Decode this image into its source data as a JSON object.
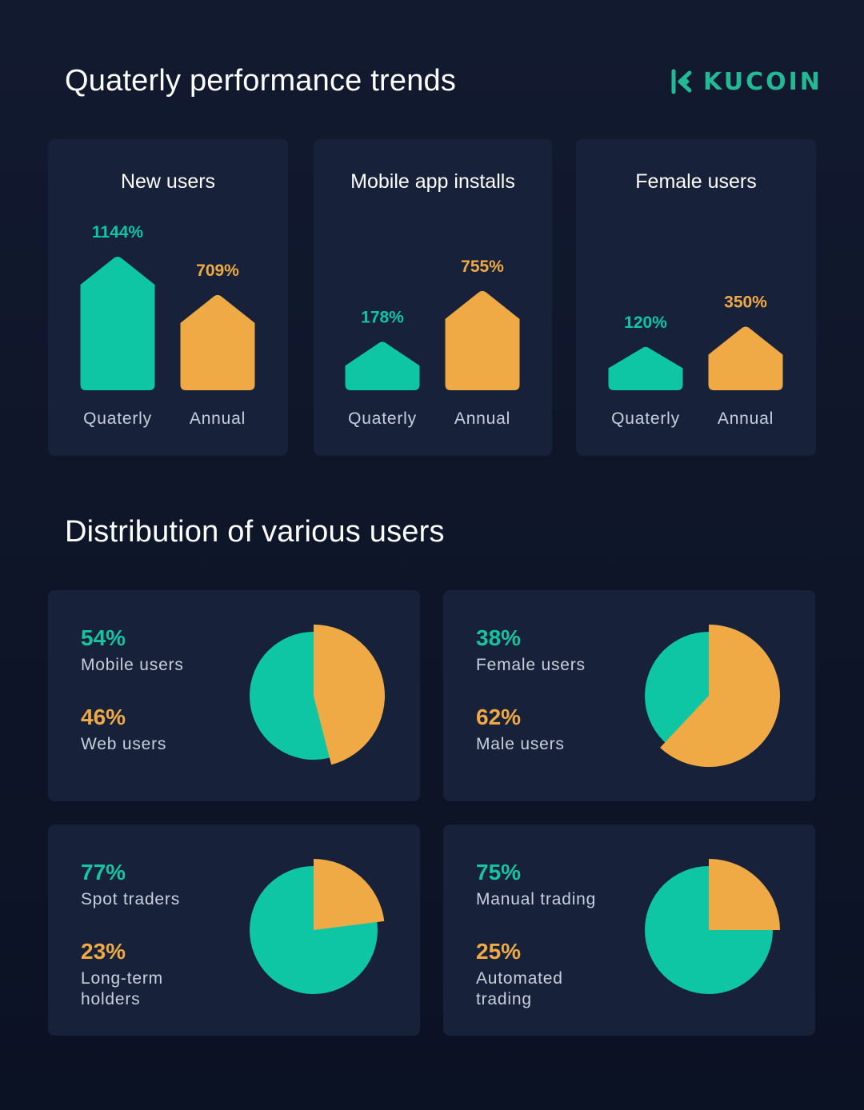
{
  "header": {
    "title": "Quaterly performance trends",
    "logo_text": "KUCOIN",
    "logo_icon": "kucoin-k-icon"
  },
  "distribution_title": "Distribution of various users",
  "colors": {
    "quarterly": "#0fc6a4",
    "annual": "#efaa45",
    "background": "#0f1629",
    "card": "#17213a"
  },
  "chart_data": [
    {
      "type": "bar",
      "title": "New users",
      "categories": [
        "Quaterly",
        "Annual"
      ],
      "values": [
        1144,
        709
      ],
      "labels": [
        "1144%",
        "709%"
      ]
    },
    {
      "type": "bar",
      "title": "Mobile app installs",
      "categories": [
        "Quaterly",
        "Annual"
      ],
      "values": [
        178,
        755
      ],
      "labels": [
        "178%",
        "755%"
      ]
    },
    {
      "type": "bar",
      "title": "Female users",
      "categories": [
        "Quaterly",
        "Annual"
      ],
      "values": [
        120,
        350
      ],
      "labels": [
        "120%",
        "350%"
      ]
    },
    {
      "type": "pie",
      "slices": [
        {
          "label": "Mobile users",
          "value": 54,
          "display": "54%"
        },
        {
          "label": "Web users",
          "value": 46,
          "display": "46%"
        }
      ]
    },
    {
      "type": "pie",
      "slices": [
        {
          "label": "Female users",
          "value": 38,
          "display": "38%"
        },
        {
          "label": "Male users",
          "value": 62,
          "display": "62%"
        }
      ]
    },
    {
      "type": "pie",
      "slices": [
        {
          "label": "Spot traders",
          "value": 77,
          "display": "77%"
        },
        {
          "label": "Long-term holders",
          "value": 23,
          "display": "23%"
        }
      ]
    },
    {
      "type": "pie",
      "slices": [
        {
          "label": "Manual trading",
          "value": 75,
          "display": "75%"
        },
        {
          "label": "Automated trading",
          "value": 25,
          "display": "25%"
        }
      ]
    }
  ]
}
